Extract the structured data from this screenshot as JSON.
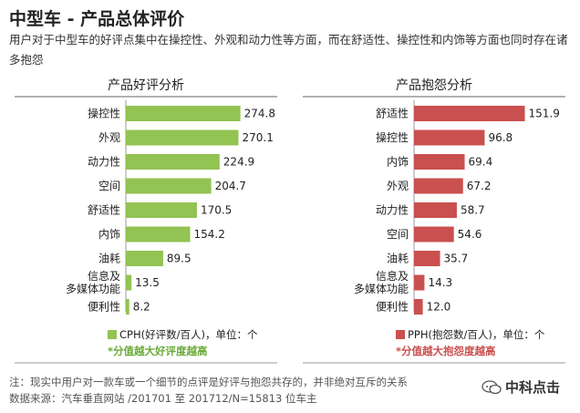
{
  "header": {
    "title": "中型车 - 产品总体评价",
    "subtitle": "用户对于中型车的好评点集中在操控性、外观和动力性等方面，而在舒适性、操控性和内饰等方面也同时存在诸多抱怨"
  },
  "chart_data": [
    {
      "type": "bar",
      "orientation": "horizontal",
      "title": "产品好评分析",
      "categories": [
        "操控性",
        "外观",
        "动力性",
        "空间",
        "舒适性",
        "内饰",
        "油耗",
        "信息及多媒体功能",
        "便利性"
      ],
      "category_lines": [
        [
          "操控性"
        ],
        [
          "外观"
        ],
        [
          "动力性"
        ],
        [
          "空间"
        ],
        [
          "舒适性"
        ],
        [
          "内饰"
        ],
        [
          "油耗"
        ],
        [
          "信息及",
          "多媒体功能"
        ],
        [
          "便利性"
        ]
      ],
      "values": [
        274.8,
        270.1,
        224.9,
        204.7,
        170.5,
        154.2,
        89.5,
        13.5,
        8.2
      ],
      "value_labels": [
        "274.8",
        "270.1",
        "224.9",
        "204.7",
        "170.5",
        "154.2",
        "89.5",
        "13.5",
        "8.2"
      ],
      "xlim": [
        0,
        280
      ],
      "color": "#92c353",
      "legend": "CPH(好评数/百人)，单位：个",
      "legend_position": "bottom",
      "note": "*分值越大好评度越高",
      "note_color": "#6aaa3a"
    },
    {
      "type": "bar",
      "orientation": "horizontal",
      "title": "产品抱怨分析",
      "categories": [
        "舒适性",
        "操控性",
        "内饰",
        "外观",
        "动力性",
        "空间",
        "油耗",
        "信息及多媒体功能",
        "便利性"
      ],
      "category_lines": [
        [
          "舒适性"
        ],
        [
          "操控性"
        ],
        [
          "内饰"
        ],
        [
          "外观"
        ],
        [
          "动力性"
        ],
        [
          "空间"
        ],
        [
          "油耗"
        ],
        [
          "信息及",
          "多媒体功能"
        ],
        [
          "便利性"
        ]
      ],
      "values": [
        151.9,
        96.8,
        69.4,
        67.2,
        58.7,
        54.6,
        35.7,
        14.3,
        12.0
      ],
      "value_labels": [
        "151.9",
        "96.8",
        "69.4",
        "67.2",
        "58.7",
        "54.6",
        "35.7",
        "14.3",
        "12.0"
      ],
      "xlim": [
        0,
        160
      ],
      "color": "#c9504f",
      "legend": "PPH(抱怨数/百人)，单位：个",
      "legend_position": "bottom",
      "note": "*分值越大抱怨度越高",
      "note_color": "#c9504f"
    }
  ],
  "footer": {
    "note": "注：现实中用户对一款车或一个细节的点评是好评与抱怨共存的，并非绝对互斥的关系",
    "source": "数据来源：汽车垂直网站 /201701 至 201712/N=15813 位车主"
  },
  "watermark": {
    "icon": "chat-bubble-icon",
    "text": "中科点击"
  }
}
